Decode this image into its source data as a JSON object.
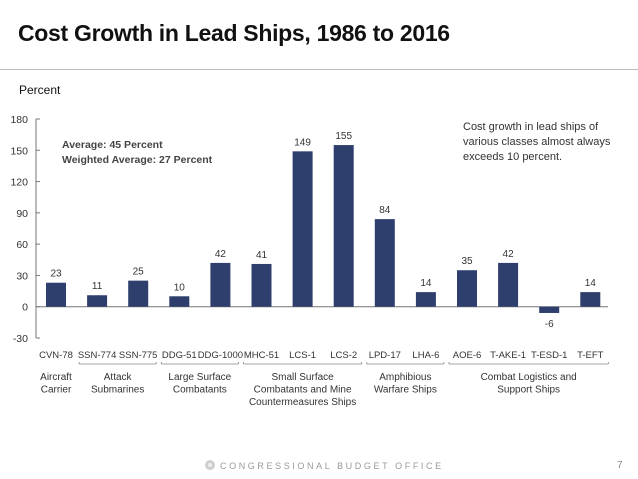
{
  "slide": {
    "title": "Cost Growth in Lead Ships, 1986 to 2016",
    "footer_org": "CONGRESSIONAL BUDGET OFFICE",
    "page_number": "7"
  },
  "chart_data": {
    "type": "bar",
    "title": "Cost Growth in Lead Ships, 1986 to 2016",
    "ylabel": "Percent",
    "xlabel": "",
    "ylim": [
      -30,
      180
    ],
    "yticks": [
      -30,
      0,
      30,
      60,
      90,
      120,
      150,
      180
    ],
    "grid": false,
    "bar_color": "#2e3f6e",
    "categories": [
      "CVN-78",
      "SSN-774",
      "SSN-775",
      "DDG-51",
      "DDG-1000",
      "MHC-51",
      "LCS-1",
      "LCS-2",
      "LPD-17",
      "LHA-6",
      "AOE-6",
      "T-AKE-1",
      "T-ESD-1",
      "T-EFT"
    ],
    "values": [
      23,
      11,
      25,
      10,
      42,
      41,
      149,
      155,
      84,
      14,
      35,
      42,
      -6,
      14
    ],
    "groups": [
      {
        "label_lines": [
          "Aircraft",
          "Carrier"
        ],
        "start": 0,
        "end": 0
      },
      {
        "label_lines": [
          "Attack",
          "Submarines"
        ],
        "start": 1,
        "end": 2
      },
      {
        "label_lines": [
          "Large Surface",
          "Combatants"
        ],
        "start": 3,
        "end": 4
      },
      {
        "label_lines": [
          "Small Surface",
          "Combatants and Mine",
          "Countermeasures Ships"
        ],
        "start": 5,
        "end": 7
      },
      {
        "label_lines": [
          "Amphibious",
          "Warfare Ships"
        ],
        "start": 8,
        "end": 9
      },
      {
        "label_lines": [
          "Combat Logistics and",
          "Support Ships"
        ],
        "start": 10,
        "end": 13
      }
    ],
    "annotations": {
      "average": "Average: 45 Percent",
      "weighted_average": "Weighted Average: 27 Percent",
      "note_lines": [
        "Cost growth in lead ships of",
        "various classes almost always",
        "exceeds 10 percent."
      ]
    }
  }
}
